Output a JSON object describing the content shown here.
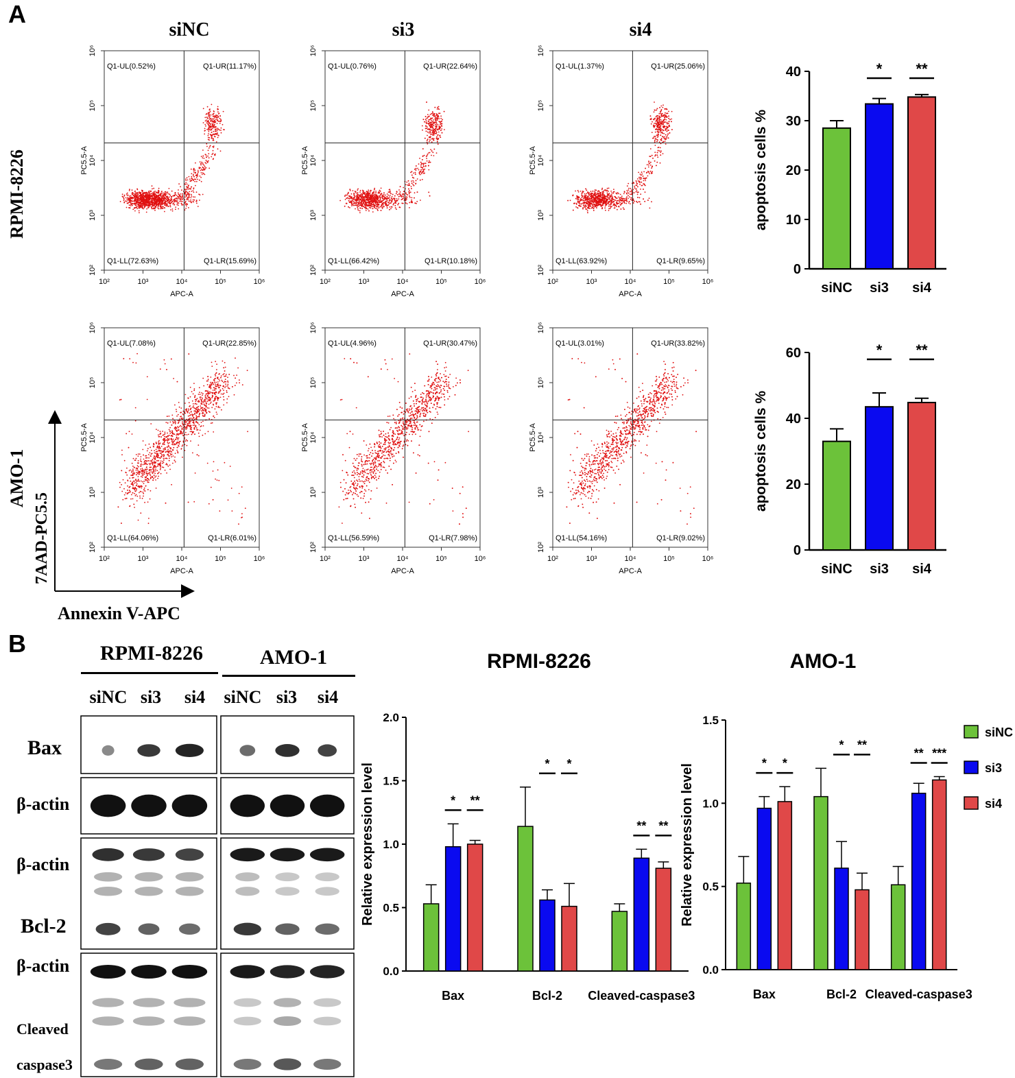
{
  "panel_a": {
    "letter": "A",
    "columns": [
      "siNC",
      "si3",
      "si4"
    ],
    "rows": [
      "RPMI-8226",
      "AMO-1"
    ],
    "axis_arrow_y": "7AAD-PC5.5",
    "axis_arrow_x": "Annexin V-APC",
    "flow_ylabel": "PC5.5-A",
    "flow_xlabel": "APC-A",
    "flow_ticks": [
      "10²",
      "10³",
      "10⁴",
      "10⁵",
      "10⁶"
    ],
    "flow_plots": [
      {
        "row": "RPMI-8226",
        "group": "siNC",
        "UL": "Q1-UL(0.52%)",
        "UR": "Q1-UR(11.17%)",
        "LL": "Q1-LL(72.63%)",
        "LR": "Q1-LR(15.69%)"
      },
      {
        "row": "RPMI-8226",
        "group": "si3",
        "UL": "Q1-UL(0.76%)",
        "UR": "Q1-UR(22.64%)",
        "LL": "Q1-LL(66.42%)",
        "LR": "Q1-LR(10.18%)"
      },
      {
        "row": "RPMI-8226",
        "group": "si4",
        "UL": "Q1-UL(1.37%)",
        "UR": "Q1-UR(25.06%)",
        "LL": "Q1-LL(63.92%)",
        "LR": "Q1-LR(9.65%)"
      },
      {
        "row": "AMO-1",
        "group": "siNC",
        "UL": "Q1-UL(7.08%)",
        "UR": "Q1-UR(22.85%)",
        "LL": "Q1-LL(64.06%)",
        "LR": "Q1-LR(6.01%)"
      },
      {
        "row": "AMO-1",
        "group": "si3",
        "UL": "Q1-UL(4.96%)",
        "UR": "Q1-UR(30.47%)",
        "LL": "Q1-LL(56.59%)",
        "LR": "Q1-LR(7.98%)"
      },
      {
        "row": "AMO-1",
        "group": "si4",
        "UL": "Q1-UL(3.01%)",
        "UR": "Q1-UR(33.82%)",
        "LL": "Q1-LL(54.16%)",
        "LR": "Q1-LR(9.02%)"
      }
    ]
  },
  "panel_b": {
    "letter": "B",
    "blot_groups": [
      "RPMI-8226",
      "AMO-1"
    ],
    "lanes": [
      "siNC",
      "si3",
      "si4",
      "siNC",
      "si3",
      "si4"
    ],
    "blot_labels": [
      "Bax",
      "β-actin",
      "β-actin",
      "Bcl-2",
      "β-actin",
      "Cleaved",
      "caspase3"
    ]
  },
  "colors": {
    "siNC": "#6cc23a",
    "si3": "#0a0af0",
    "si4": "#e04848",
    "scatter": "#e01010"
  },
  "chart_data": [
    {
      "type": "bar",
      "title": "",
      "ylabel": "apoptosis cells %",
      "xlabel": "",
      "categories": [
        "siNC",
        "si3",
        "si4"
      ],
      "values": [
        28.5,
        33.4,
        34.8
      ],
      "errors": [
        1.5,
        1.1,
        0.5
      ],
      "ylim": [
        0,
        40
      ],
      "yticks": [
        "0",
        "10",
        "20",
        "30",
        "40"
      ],
      "significance": [
        {
          "category": "si3",
          "label": "*"
        },
        {
          "category": "si4",
          "label": "**"
        }
      ]
    },
    {
      "type": "bar",
      "title": "",
      "ylabel": "apoptosis cells %",
      "xlabel": "",
      "categories": [
        "siNC",
        "si3",
        "si4"
      ],
      "values": [
        33,
        43.5,
        44.8
      ],
      "errors": [
        3.8,
        4.2,
        1.3
      ],
      "ylim": [
        0,
        60
      ],
      "yticks": [
        "0",
        "20",
        "40",
        "60"
      ],
      "significance": [
        {
          "category": "si3",
          "label": "*"
        },
        {
          "category": "si4",
          "label": "**"
        }
      ]
    },
    {
      "type": "bar",
      "title": "RPMI-8226",
      "ylabel": "Relative expression level",
      "categories": [
        "Bax",
        "Bcl-2",
        "Cleaved-caspase3"
      ],
      "ylim": [
        0,
        2.0
      ],
      "yticks": [
        "0.0",
        "0.5",
        "1.0",
        "1.5",
        "2.0"
      ],
      "series": [
        {
          "name": "siNC",
          "values": [
            0.53,
            1.14,
            0.47
          ],
          "errors": [
            0.15,
            0.31,
            0.06
          ]
        },
        {
          "name": "si3",
          "values": [
            0.98,
            0.56,
            0.89
          ],
          "errors": [
            0.18,
            0.08,
            0.07
          ]
        },
        {
          "name": "si4",
          "values": [
            1.0,
            0.51,
            0.81
          ],
          "errors": [
            0.03,
            0.18,
            0.05
          ]
        }
      ],
      "significance": [
        {
          "category": "Bax",
          "series": "si3",
          "label": "*"
        },
        {
          "category": "Bax",
          "series": "si4",
          "label": "**"
        },
        {
          "category": "Bcl-2",
          "series": "si3",
          "label": "*"
        },
        {
          "category": "Bcl-2",
          "series": "si4",
          "label": "*"
        },
        {
          "category": "Cleaved-caspase3",
          "series": "si3",
          "label": "**"
        },
        {
          "category": "Cleaved-caspase3",
          "series": "si4",
          "label": "**"
        }
      ]
    },
    {
      "type": "bar",
      "title": "AMO-1",
      "ylabel": "Relative expression level",
      "categories": [
        "Bax",
        "Bcl-2",
        "Cleaved-caspase3"
      ],
      "ylim": [
        0,
        1.5
      ],
      "yticks": [
        "0.0",
        "0.5",
        "1.0",
        "1.5"
      ],
      "legend": "right",
      "series": [
        {
          "name": "siNC",
          "values": [
            0.52,
            1.04,
            0.51
          ],
          "errors": [
            0.16,
            0.17,
            0.11
          ]
        },
        {
          "name": "si3",
          "values": [
            0.97,
            0.61,
            1.06
          ],
          "errors": [
            0.07,
            0.16,
            0.06
          ]
        },
        {
          "name": "si4",
          "values": [
            1.01,
            0.48,
            1.14
          ],
          "errors": [
            0.09,
            0.1,
            0.02
          ]
        }
      ],
      "significance": [
        {
          "category": "Bax",
          "series": "si3",
          "label": "*"
        },
        {
          "category": "Bax",
          "series": "si4",
          "label": "*"
        },
        {
          "category": "Bcl-2",
          "series": "si3",
          "label": "*"
        },
        {
          "category": "Bcl-2",
          "series": "si4",
          "label": "**"
        },
        {
          "category": "Cleaved-caspase3",
          "series": "si3",
          "label": "**"
        },
        {
          "category": "Cleaved-caspase3",
          "series": "si4",
          "label": "***"
        }
      ]
    }
  ]
}
